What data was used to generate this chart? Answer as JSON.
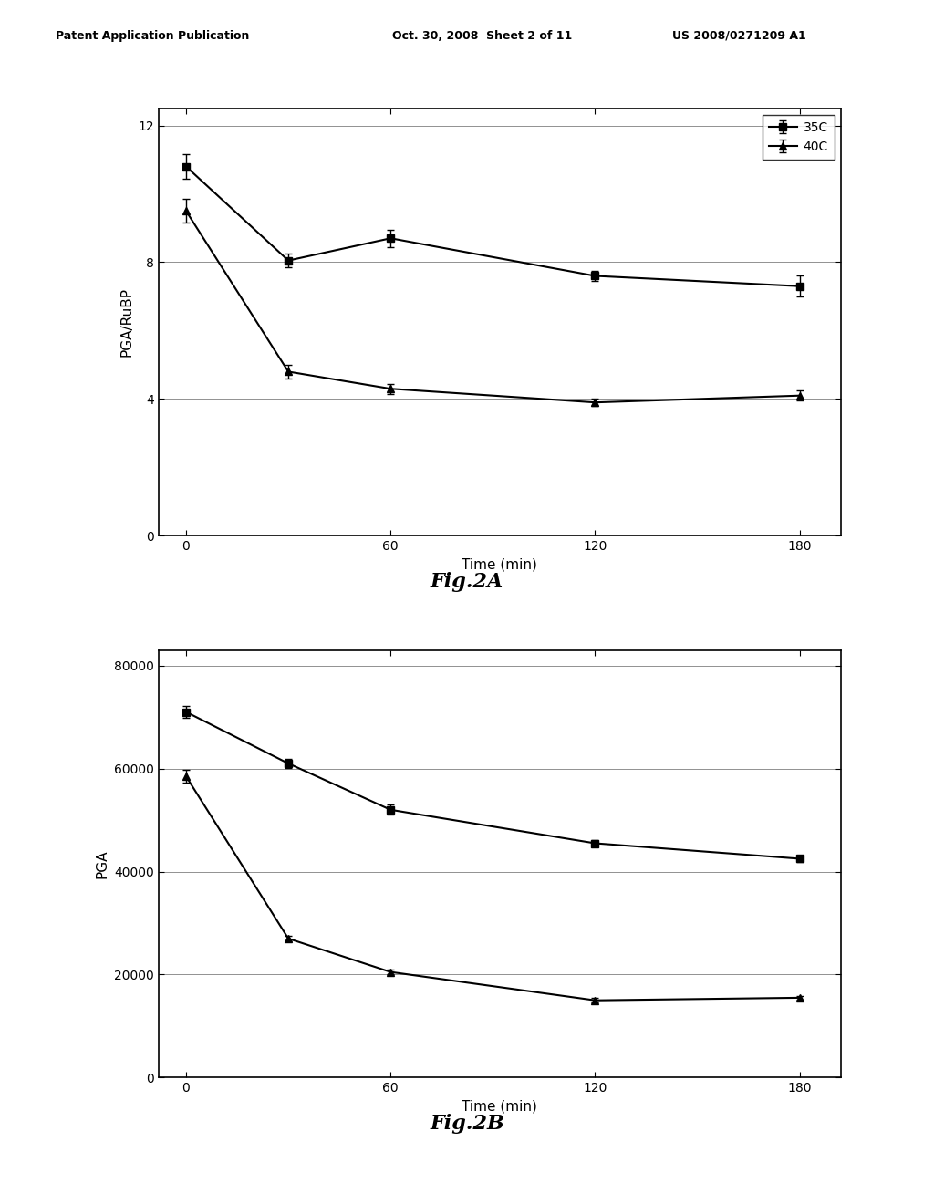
{
  "fig2a": {
    "title": "Fig.2A",
    "ylabel": "PGA/RuBP",
    "xlabel": "Time (min)",
    "xdata": [
      0,
      30,
      60,
      120,
      180
    ],
    "xticks": [
      0,
      60,
      120,
      180
    ],
    "series": [
      {
        "label": "35C",
        "marker": "s",
        "y": [
          10.8,
          8.05,
          8.7,
          7.6,
          7.3
        ],
        "yerr": [
          0.35,
          0.2,
          0.25,
          0.15,
          0.3
        ]
      },
      {
        "label": "40C",
        "marker": "^",
        "y": [
          9.5,
          4.8,
          4.3,
          3.9,
          4.1
        ],
        "yerr": [
          0.35,
          0.2,
          0.15,
          0.1,
          0.15
        ]
      }
    ],
    "ylim": [
      0,
      12.5
    ],
    "yticks": [
      0,
      4,
      8,
      12
    ],
    "gridlines": [
      4,
      8,
      12
    ]
  },
  "fig2b": {
    "title": "Fig.2B",
    "ylabel": "PGA",
    "xlabel": "Time (min)",
    "xdata": [
      0,
      30,
      60,
      120,
      180
    ],
    "xticks": [
      0,
      60,
      120,
      180
    ],
    "series": [
      {
        "label": "35C",
        "marker": "s",
        "y": [
          71000,
          61000,
          52000,
          45500,
          42500
        ],
        "yerr": [
          1200,
          800,
          1000,
          700,
          700
        ]
      },
      {
        "label": "40C",
        "marker": "^",
        "y": [
          58500,
          27000,
          20500,
          15000,
          15500
        ],
        "yerr": [
          1200,
          500,
          500,
          400,
          400
        ]
      }
    ],
    "ylim": [
      0,
      83000
    ],
    "yticks": [
      0,
      20000,
      40000,
      60000,
      80000
    ],
    "gridlines": [
      20000,
      40000,
      60000,
      80000
    ]
  },
  "line_color": "#000000",
  "marker_size": 6,
  "line_width": 1.5,
  "capsize": 3,
  "elinewidth": 1.0,
  "background_color": "#ffffff",
  "header_left": "Patent Application Publication",
  "header_mid": "Oct. 30, 2008  Sheet 2 of 11",
  "header_right": "US 2008/0271209 A1",
  "label_fontsize": 11,
  "tick_fontsize": 10,
  "legend_fontsize": 10,
  "fig_caption_fontsize": 16
}
